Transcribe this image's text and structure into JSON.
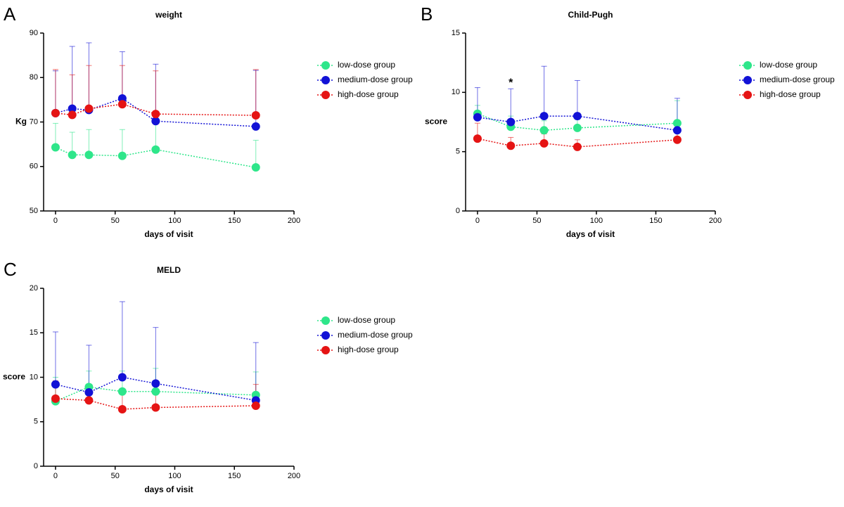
{
  "chart_data": [
    {
      "type": "line",
      "panel": "A",
      "title": "weight",
      "xlabel": "days of visit",
      "ylabel": "Kg",
      "x": [
        0,
        14,
        28,
        56,
        84,
        168
      ],
      "xlim": [
        -10,
        200
      ],
      "xticks": [
        0,
        50,
        100,
        150,
        200
      ],
      "ylim": [
        50,
        90
      ],
      "yticks": [
        50,
        60,
        70,
        80,
        90
      ],
      "legend": "right",
      "series": [
        {
          "name": "low-dose group",
          "color": "#2ee68a",
          "values": [
            64.3,
            62.6,
            62.6,
            62.4,
            63.8,
            59.8
          ],
          "errors": [
            5.4,
            5.1,
            5.7,
            5.9,
            6,
            6.1
          ]
        },
        {
          "name": "medium-dose group",
          "color": "#1212d6",
          "values": [
            72,
            73,
            72.7,
            75.3,
            70.2,
            69
          ],
          "errors": [
            9.5,
            14,
            15.1,
            10.5,
            12.8,
            12.6
          ]
        },
        {
          "name": "high-dose group",
          "color": "#e51414",
          "values": [
            72,
            71.6,
            73,
            74,
            71.8,
            71.5
          ],
          "errors": [
            9.8,
            9,
            9.7,
            8.7,
            9.7,
            10.3
          ]
        }
      ]
    },
    {
      "type": "line",
      "panel": "B",
      "title": "Child-Pugh",
      "xlabel": "days of visit",
      "ylabel": "score",
      "x": [
        0,
        28,
        56,
        84,
        168
      ],
      "xlim": [
        -10,
        200
      ],
      "xticks": [
        0,
        50,
        100,
        150,
        200
      ],
      "ylim": [
        0,
        15
      ],
      "yticks": [
        0,
        5,
        10,
        15
      ],
      "legend": "right",
      "annotation": {
        "text": "*",
        "x": 28,
        "color": "#1f7a1f"
      },
      "series": [
        {
          "name": "low-dose group",
          "color": "#2ee68a",
          "values": [
            8.2,
            7.1,
            6.8,
            7.0,
            7.4
          ],
          "errors": [
            0.7,
            0.9,
            0.8,
            0.7,
            1.9
          ]
        },
        {
          "name": "medium-dose group",
          "color": "#1212d6",
          "values": [
            7.9,
            7.5,
            8.0,
            8.0,
            6.8
          ],
          "errors": [
            2.5,
            2.8,
            4.2,
            3.0,
            2.7
          ]
        },
        {
          "name": "high-dose group",
          "color": "#e51414",
          "values": [
            6.1,
            5.5,
            5.7,
            5.4,
            6.0
          ],
          "errors": [
            1.3,
            0.7,
            0.8,
            0.6,
            0.6
          ]
        }
      ]
    },
    {
      "type": "line",
      "panel": "C",
      "title": "MELD",
      "xlabel": "days of visit",
      "ylabel": "score",
      "x": [
        0,
        28,
        56,
        84,
        168
      ],
      "xlim": [
        -10,
        200
      ],
      "xticks": [
        0,
        50,
        100,
        150,
        200
      ],
      "ylim": [
        0,
        20
      ],
      "yticks": [
        0,
        5,
        10,
        15,
        20
      ],
      "legend": "right",
      "series": [
        {
          "name": "low-dose group",
          "color": "#2ee68a",
          "values": [
            7.3,
            8.9,
            8.4,
            8.4,
            8.0
          ],
          "errors": [
            2.7,
            1.8,
            2.3,
            2.6,
            2.6
          ]
        },
        {
          "name": "medium-dose group",
          "color": "#1212d6",
          "values": [
            9.2,
            8.3,
            10.0,
            9.3,
            7.4
          ],
          "errors": [
            5.9,
            5.3,
            8.5,
            6.3,
            6.5
          ]
        },
        {
          "name": "high-dose group",
          "color": "#e51414",
          "values": [
            7.6,
            7.4,
            6.4,
            6.6,
            6.8
          ],
          "errors": [
            2.0,
            1.5,
            2.0,
            1.5,
            2.4
          ]
        }
      ]
    }
  ]
}
